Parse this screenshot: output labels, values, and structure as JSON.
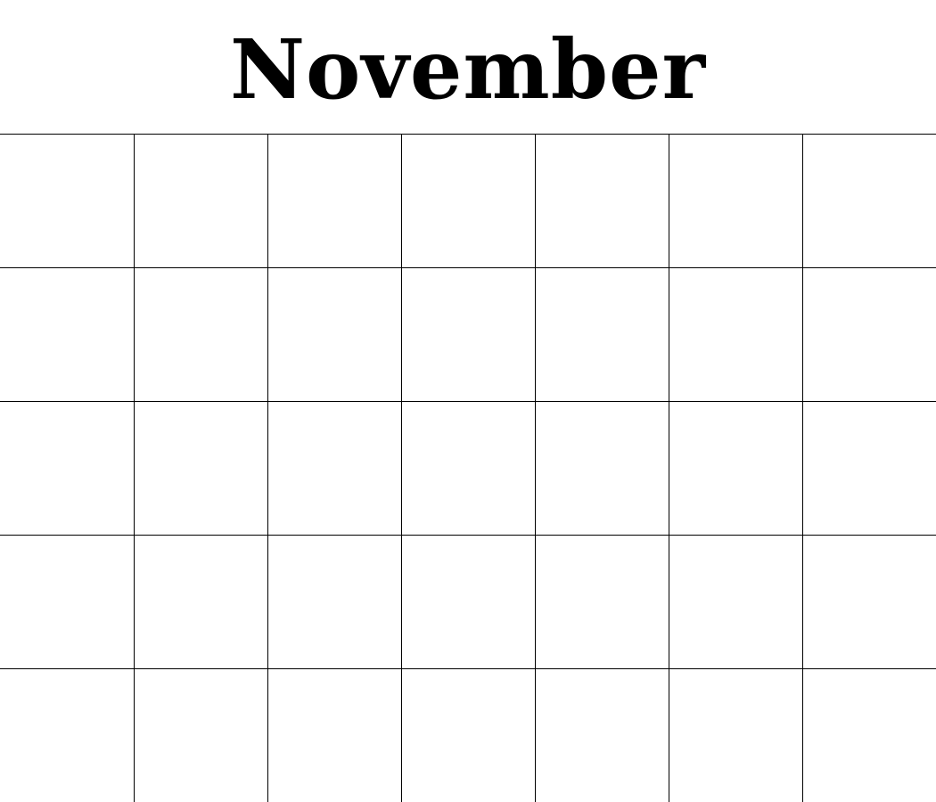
{
  "calendar": {
    "month_title": "November",
    "weeks": 5,
    "days_per_week": 7
  }
}
